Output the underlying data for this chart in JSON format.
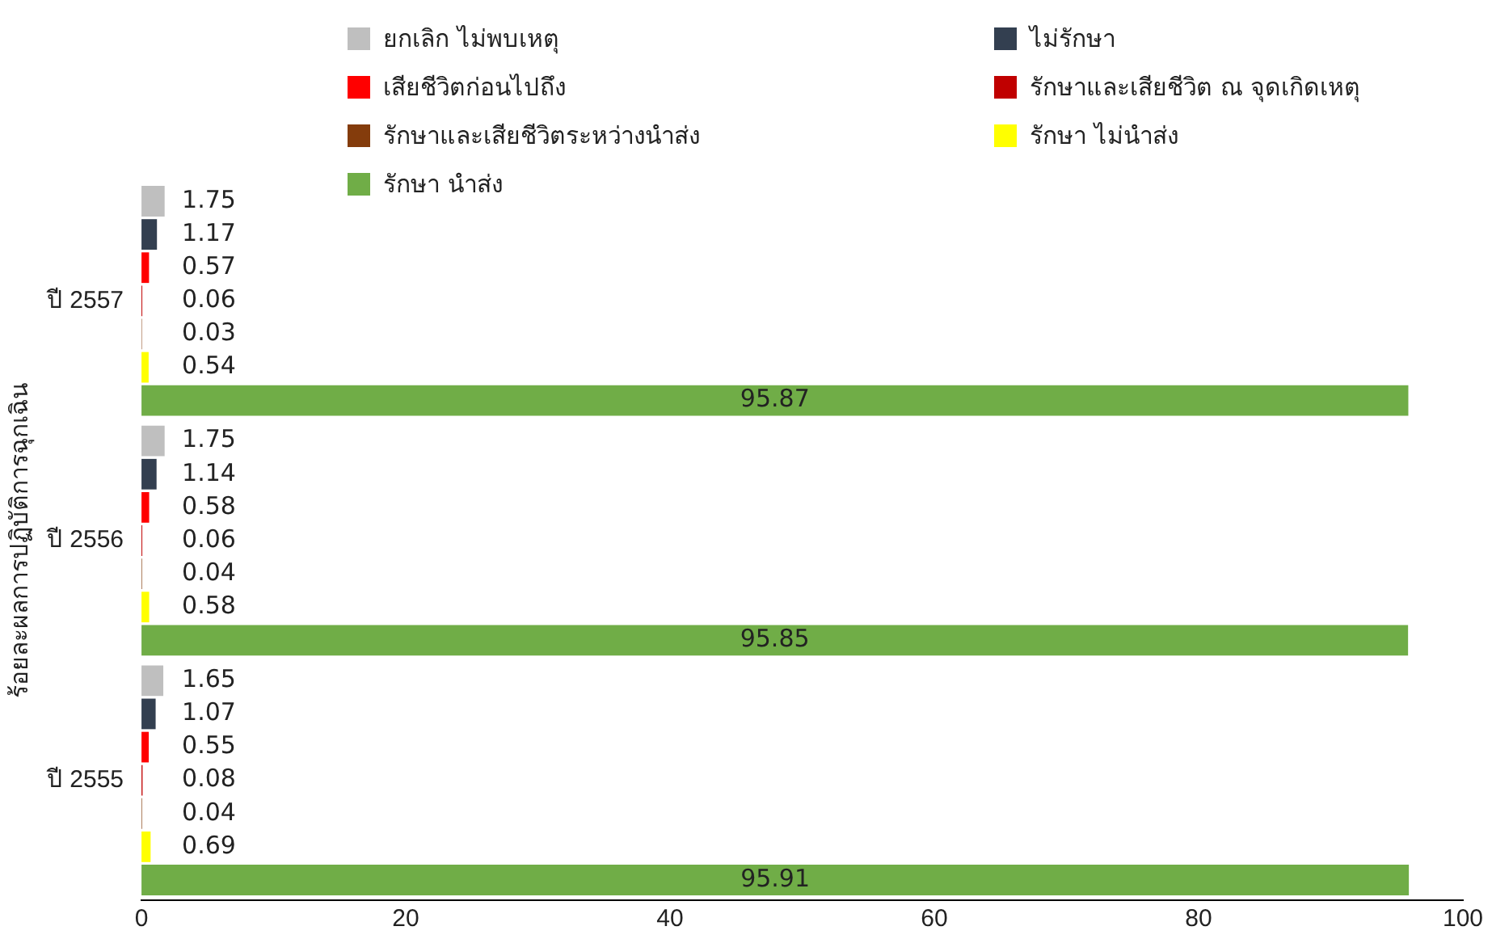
{
  "chart_data": {
    "type": "bar",
    "orientation": "horizontal",
    "ylabel": "ร้อยละผลการปฏิบัติการฉุกเฉิน",
    "categories": [
      "ปี 2557",
      "ปี 2556",
      "ปี 2555"
    ],
    "series": [
      {
        "name": "ยกเลิก ไม่พบเหตุ",
        "color": "#bfbfbf",
        "values": [
          1.75,
          1.75,
          1.65
        ]
      },
      {
        "name": "ไม่รักษา",
        "color": "#333f50",
        "values": [
          1.17,
          1.14,
          1.07
        ]
      },
      {
        "name": "เสียชีวิตก่อนไปถึง",
        "color": "#ff0000",
        "values": [
          0.57,
          0.58,
          0.55
        ]
      },
      {
        "name": "รักษาและเสียชีวิต ณ จุดเกิดเหตุ",
        "color": "#c00000",
        "values": [
          0.06,
          0.06,
          0.08
        ]
      },
      {
        "name": "รักษาและเสียชีวิตระหว่างนำส่ง",
        "color": "#843c0c",
        "values": [
          0.03,
          0.04,
          0.04
        ]
      },
      {
        "name": "รักษา ไม่นำส่ง",
        "color": "#ffff00",
        "values": [
          0.54,
          0.58,
          0.69
        ]
      },
      {
        "name": "รักษา นำส่ง",
        "color": "#70ad47",
        "values": [
          95.87,
          95.85,
          95.91
        ]
      }
    ],
    "xlim": [
      0,
      100
    ],
    "xticks": [
      0,
      20,
      40,
      60,
      80,
      100
    ],
    "grid": false,
    "legend": "top",
    "data_labels": true
  }
}
